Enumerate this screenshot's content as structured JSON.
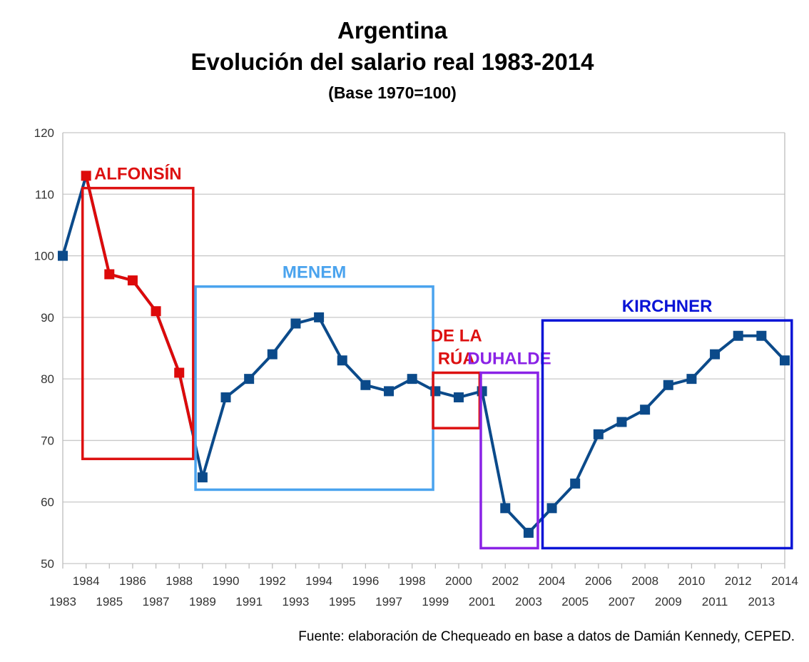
{
  "header": {
    "title_line1": "Argentina",
    "title_line2": "Evolución del salario real 1983-2014",
    "subtitle": "(Base 1970=100)"
  },
  "source_note": "Fuente: elaboración de Chequeado en base a datos de Damián Kennedy, CEPED.",
  "chart_data": {
    "type": "line",
    "title": "Argentina Evolución del salario real 1983-2014",
    "subtitle": "(Base 1970=100)",
    "x": [
      1983,
      1984,
      1985,
      1986,
      1987,
      1988,
      1989,
      1990,
      1991,
      1992,
      1993,
      1994,
      1995,
      1996,
      1997,
      1998,
      1999,
      2000,
      2001,
      2002,
      2003,
      2004,
      2005,
      2006,
      2007,
      2008,
      2009,
      2010,
      2011,
      2012,
      2013,
      2014
    ],
    "y": [
      100,
      113,
      97,
      96,
      91,
      81,
      64,
      77,
      80,
      84,
      89,
      90,
      83,
      79,
      78,
      80,
      78,
      77,
      78,
      59,
      55,
      59,
      63,
      71,
      73,
      75,
      79,
      80,
      84,
      87,
      87,
      83
    ],
    "highlight": {
      "color": "#dd0a0a",
      "from_year": 1984,
      "to_year": 1988
    },
    "xlim": [
      1983,
      2014
    ],
    "ylim": [
      50,
      120
    ],
    "yticks": [
      50,
      60,
      70,
      80,
      90,
      100,
      110,
      120
    ],
    "xtick_labels_top": [
      "1984",
      "1986",
      "1988",
      "1990",
      "1992",
      "1994",
      "1996",
      "1998",
      "2000",
      "2002",
      "2004",
      "2006",
      "2008",
      "2010",
      "2012",
      "2014"
    ],
    "xtick_labels_bottom": [
      "1983",
      "1985",
      "1987",
      "1989",
      "1991",
      "1993",
      "1995",
      "1997",
      "1999",
      "2001",
      "2003",
      "2005",
      "2007",
      "2009",
      "2011",
      "2013"
    ],
    "grid": true,
    "line_color": "#0b4a8a",
    "annotations": [
      {
        "label": "ALFONSÍN",
        "color": "#dd1111",
        "from": 1983.85,
        "to": 1988.6,
        "top": 111,
        "bottom": 67
      },
      {
        "label": "MENEM",
        "color": "#4aa3ee",
        "from": 1988.7,
        "to": 1998.9,
        "top": 95,
        "bottom": 62
      },
      {
        "label": "DE LA RÚA",
        "label_lines": [
          "DE LA",
          "RÚA"
        ],
        "color": "#dd1111",
        "from": 1998.9,
        "to": 2000.9,
        "top": 81,
        "bottom": 72
      },
      {
        "label": "DUHALDE",
        "color": "#8a22e6",
        "from": 2000.95,
        "to": 2003.4,
        "top": 81,
        "bottom": 52.5
      },
      {
        "label": "KIRCHNER",
        "color": "#0a14d6",
        "from": 2003.6,
        "to": 2014.3,
        "top": 89.5,
        "bottom": 52.5
      }
    ]
  }
}
